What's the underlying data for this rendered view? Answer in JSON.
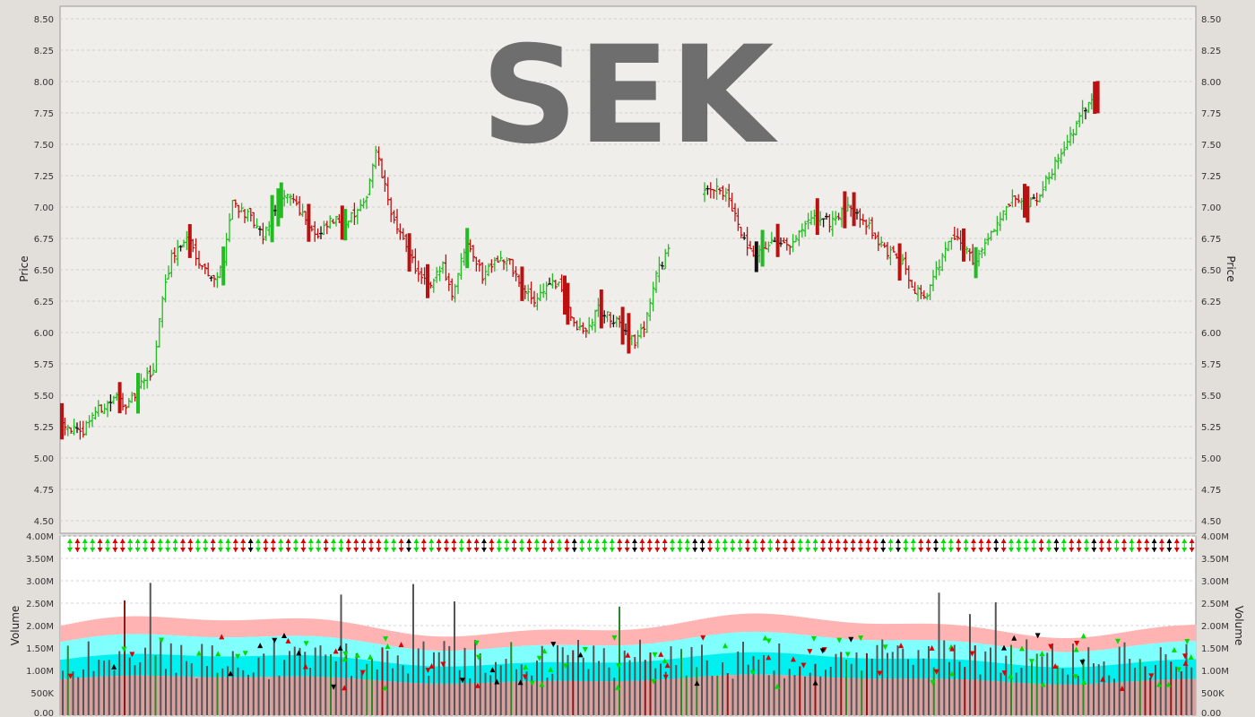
{
  "chart_data": [
    {
      "type": "ohlc",
      "title": "SEK",
      "ylabel": "Price",
      "ylim": [
        4.4,
        8.6
      ],
      "y_ticks": [
        4.5,
        4.75,
        5.0,
        5.25,
        5.5,
        5.75,
        6.0,
        6.25,
        6.5,
        6.75,
        7.0,
        7.25,
        7.5,
        7.75,
        8.0,
        8.25,
        8.5
      ],
      "y_tick_labels": [
        "4.50",
        "4.75",
        "5.00",
        "5.25",
        "5.50",
        "5.75",
        "6.00",
        "6.25",
        "6.50",
        "6.75",
        "7.00",
        "7.25",
        "7.50",
        "7.75",
        "8.00",
        "8.25",
        "8.50"
      ],
      "grid": true,
      "bar_count": 210,
      "anchors": [
        [
          0,
          5.3
        ],
        [
          6,
          5.18
        ],
        [
          10,
          5.35
        ],
        [
          18,
          5.48
        ],
        [
          22,
          5.42
        ],
        [
          27,
          5.62
        ],
        [
          30,
          5.7
        ],
        [
          33,
          6.3
        ],
        [
          36,
          6.6
        ],
        [
          41,
          6.75
        ],
        [
          47,
          6.5
        ],
        [
          51,
          6.42
        ],
        [
          53,
          6.6
        ],
        [
          56,
          7.05
        ],
        [
          62,
          6.9
        ],
        [
          66,
          6.75
        ],
        [
          70,
          7.0
        ],
        [
          75,
          7.1
        ],
        [
          79,
          6.95
        ],
        [
          84,
          6.75
        ],
        [
          88,
          6.88
        ],
        [
          94,
          6.9
        ],
        [
          99,
          7.0
        ],
        [
          103,
          7.45
        ],
        [
          106,
          7.15
        ],
        [
          110,
          6.8
        ],
        [
          113,
          6.7
        ],
        [
          117,
          6.45
        ],
        [
          121,
          6.35
        ],
        [
          125,
          6.55
        ],
        [
          128,
          6.3
        ],
        [
          133,
          6.75
        ],
        [
          138,
          6.45
        ],
        [
          142,
          6.6
        ],
        [
          147,
          6.55
        ],
        [
          151,
          6.35
        ],
        [
          155,
          6.25
        ],
        [
          160,
          6.4
        ],
        [
          164,
          6.35
        ],
        [
          168,
          6.05
        ],
        [
          172,
          6.0
        ],
        [
          176,
          6.2
        ],
        [
          180,
          6.1
        ],
        [
          184,
          6.05
        ],
        [
          188,
          5.92
        ],
        [
          191,
          6.05
        ],
        [
          195,
          6.45
        ],
        [
          199,
          6.68
        ]
      ],
      "segment2_anchors": [
        [
          0,
          7.1
        ],
        [
          4,
          7.18
        ],
        [
          8,
          7.05
        ],
        [
          11,
          6.85
        ],
        [
          14,
          6.65
        ],
        [
          17,
          6.6
        ],
        [
          21,
          6.72
        ],
        [
          25,
          6.68
        ],
        [
          29,
          6.7
        ],
        [
          33,
          6.85
        ],
        [
          37,
          6.92
        ],
        [
          41,
          6.88
        ],
        [
          45,
          6.95
        ],
        [
          49,
          7.0
        ],
        [
          53,
          6.88
        ],
        [
          57,
          6.72
        ],
        [
          61,
          6.62
        ],
        [
          65,
          6.55
        ],
        [
          69,
          6.35
        ],
        [
          73,
          6.3
        ],
        [
          77,
          6.55
        ],
        [
          81,
          6.75
        ],
        [
          85,
          6.7
        ],
        [
          89,
          6.55
        ],
        [
          93,
          6.78
        ],
        [
          97,
          6.9
        ],
        [
          101,
          7.05
        ],
        [
          105,
          7.0
        ],
        [
          109,
          7.05
        ],
        [
          113,
          7.25
        ],
        [
          117,
          7.45
        ],
        [
          121,
          7.6
        ],
        [
          125,
          7.8
        ],
        [
          129,
          7.9
        ]
      ]
    },
    {
      "type": "volume",
      "ylabel": "Volume",
      "ylim": [
        0,
        4000000
      ],
      "y_ticks": [
        0,
        500000,
        1000000,
        1500000,
        2000000,
        2500000,
        3000000,
        3500000,
        4000000
      ],
      "y_tick_labels": [
        "0.00",
        "500K",
        "1.00M",
        "1.50M",
        "2.00M",
        "2.50M",
        "3.00M",
        "3.50M",
        "4.00M"
      ],
      "grid": true,
      "band_colors": {
        "outer": "#ffb3b3",
        "mid": "#80ffff",
        "inner": "#00f0f0",
        "base": "#d9a0a0"
      }
    }
  ],
  "colors": {
    "up": "#22bb22",
    "down": "#bb1111",
    "neutral": "#111111",
    "watermark": "#6e6e6e",
    "plot_bg": "#f0eeea",
    "vol_bg": "#ffffff"
  }
}
